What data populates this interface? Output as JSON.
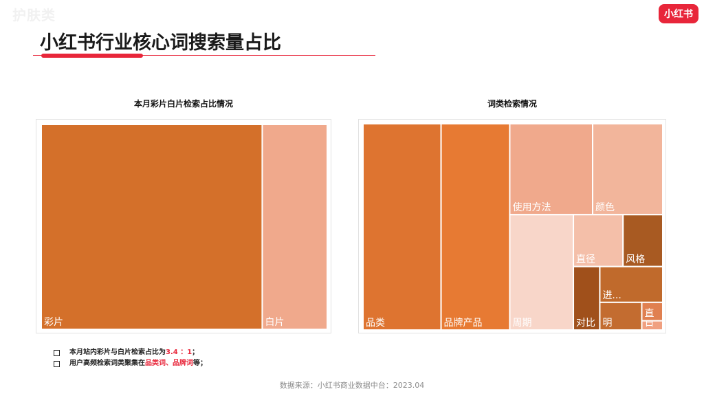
{
  "header": {
    "brand_mark": "护肤类",
    "logo": "小红书",
    "title": "小红书行业核心词搜索量占比"
  },
  "chart_data": [
    {
      "type": "treemap",
      "title": "本月彩片白片检索占比情况",
      "items": [
        {
          "label": "彩片",
          "value": 3.4,
          "color": "#d4702a"
        },
        {
          "label": "白片",
          "value": 1,
          "color": "#f0a98c"
        }
      ]
    },
    {
      "type": "treemap",
      "title": "词类检索情况",
      "items": [
        {
          "label": "品类",
          "value": 25,
          "color": "#de7430"
        },
        {
          "label": "品牌产品",
          "value": 22,
          "color": "#e77a33"
        },
        {
          "label": "使用方法",
          "value": 11.7,
          "color": "#f0a98c"
        },
        {
          "label": "颜色",
          "value": 9.9,
          "color": "#f2b59b"
        },
        {
          "label": "周期",
          "value": 11.4,
          "color": "#f8d6c9"
        },
        {
          "label": "直径",
          "value": 4.0,
          "color": "#f4bfa9"
        },
        {
          "label": "风格",
          "value": 3.2,
          "color": "#a85a22"
        },
        {
          "label": "对比",
          "value": 2.6,
          "color": "#a0501b"
        },
        {
          "label": "进...",
          "value": 3.5,
          "color": "#c06a2c"
        },
        {
          "label": "明",
          "value": 1.8,
          "color": "#c36c30"
        },
        {
          "label": "直",
          "value": 0.6,
          "color": "#e08050"
        },
        {
          "label": "日",
          "value": 0.3,
          "color": "#f0a080"
        }
      ]
    }
  ],
  "notes": [
    {
      "before": "本月站内彩片与白片检索占比为",
      "highlight": "3.4 ：1",
      "after": "；"
    },
    {
      "before": "用户高频检索词类聚集在",
      "highlight": "品类词、品牌词",
      "after": "等；"
    }
  ],
  "footer": {
    "source": "数据来源：小红书商业数据中台：2023.04"
  }
}
